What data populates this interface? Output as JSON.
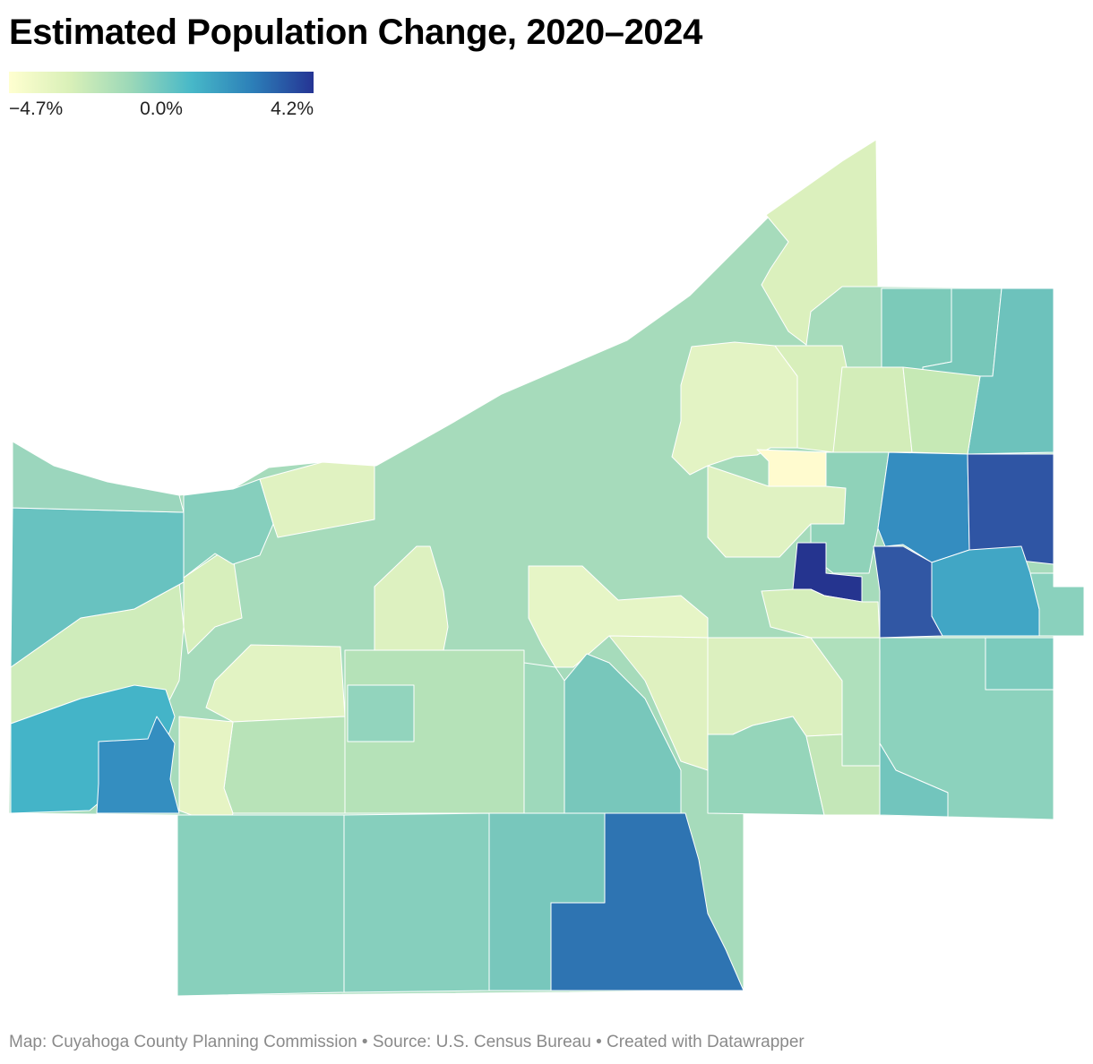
{
  "title": "Estimated Population Change, 2020–2024",
  "legend": {
    "min_label": "−4.7%",
    "mid_label": "0.0%",
    "max_label": "4.2%",
    "min_value": -4.7,
    "mid_value": 0.0,
    "max_value": 4.2,
    "color_stops": [
      "#ffffd0",
      "#d9f0b8",
      "#9bd8b8",
      "#47b8c8",
      "#2c7fb8",
      "#253494"
    ]
  },
  "chart_data": {
    "type": "choropleth",
    "title": "Estimated Population Change, 2020–2024",
    "geography": "Cuyahoga County municipalities",
    "value_range": [
      -4.7,
      4.2
    ],
    "color_scale": [
      "#ffffd0",
      "#d9f0b8",
      "#9bd8b8",
      "#47b8c8",
      "#2c7fb8",
      "#253494"
    ]
  },
  "footer": {
    "credit": "Map: Cuyahoga County Planning Commission • Source: U.S. Census Bureau • Created with Datawrapper"
  }
}
